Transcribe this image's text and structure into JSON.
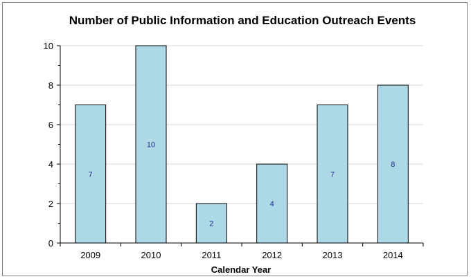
{
  "chart_data": {
    "type": "bar",
    "title": "Number of Public Information and Education Outreach Events",
    "xlabel": "Calendar Year",
    "ylabel": "",
    "categories": [
      "2009",
      "2010",
      "2011",
      "2012",
      "2013",
      "2014"
    ],
    "values": [
      7,
      10,
      2,
      4,
      7,
      8
    ],
    "data_labels": [
      "7",
      "10",
      "2",
      "4",
      "7",
      "8"
    ],
    "ylim": [
      0,
      10
    ],
    "yticks": [
      0,
      2,
      4,
      6,
      8,
      10
    ],
    "grid": true,
    "legend": "none",
    "bar_color": "#add8e6",
    "bar_edge_color": "#000000",
    "label_color": "#1f2f8f"
  }
}
